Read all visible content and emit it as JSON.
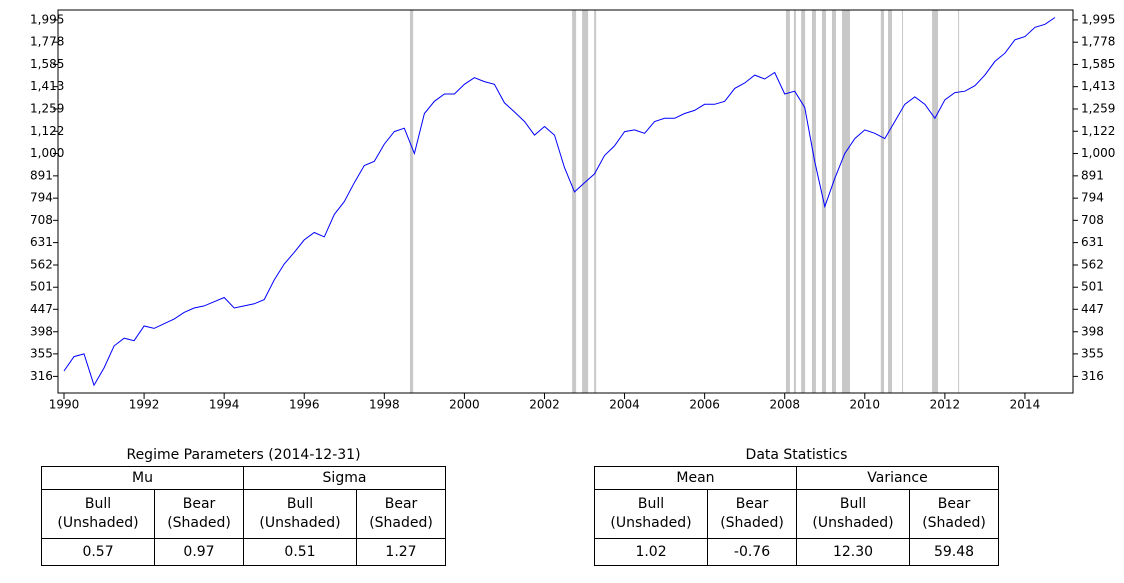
{
  "chart_data": {
    "type": "line",
    "color": "#0000ff",
    "log_y": true,
    "grid": false,
    "shade_color": "#c8c8c8",
    "x": [
      1990.0,
      1990.25,
      1990.5,
      1990.75,
      1991.0,
      1991.25,
      1991.5,
      1991.75,
      1992.0,
      1992.25,
      1992.5,
      1992.75,
      1993.0,
      1993.25,
      1993.5,
      1993.75,
      1994.0,
      1994.25,
      1994.5,
      1994.75,
      1995.0,
      1995.25,
      1995.5,
      1995.75,
      1996.0,
      1996.25,
      1996.5,
      1996.75,
      1997.0,
      1997.25,
      1997.5,
      1997.75,
      1998.0,
      1998.25,
      1998.5,
      1998.75,
      1999.0,
      1999.25,
      1999.5,
      1999.75,
      2000.0,
      2000.25,
      2000.5,
      2000.75,
      2001.0,
      2001.25,
      2001.5,
      2001.75,
      2002.0,
      2002.25,
      2002.5,
      2002.75,
      2003.0,
      2003.25,
      2003.5,
      2003.75,
      2004.0,
      2004.25,
      2004.5,
      2004.75,
      2005.0,
      2005.25,
      2005.5,
      2005.75,
      2006.0,
      2006.25,
      2006.5,
      2006.75,
      2007.0,
      2007.25,
      2007.5,
      2007.75,
      2008.0,
      2008.25,
      2008.5,
      2008.75,
      2009.0,
      2009.25,
      2009.5,
      2009.75,
      2010.0,
      2010.25,
      2010.5,
      2010.75,
      2011.0,
      2011.25,
      2011.5,
      2011.75,
      2012.0,
      2012.25,
      2012.5,
      2012.75,
      2013.0,
      2013.25,
      2013.5,
      2013.75,
      2014.0,
      2014.25,
      2014.5,
      2014.75
    ],
    "values": [
      325,
      350,
      355,
      302,
      330,
      370,
      385,
      380,
      410,
      405,
      415,
      425,
      440,
      450,
      455,
      465,
      475,
      450,
      455,
      460,
      470,
      520,
      565,
      600,
      640,
      665,
      650,
      730,
      780,
      860,
      940,
      960,
      1050,
      1120,
      1140,
      1000,
      1230,
      1310,
      1360,
      1360,
      1430,
      1480,
      1450,
      1430,
      1300,
      1240,
      1180,
      1100,
      1150,
      1100,
      930,
      820,
      860,
      900,
      990,
      1040,
      1120,
      1130,
      1110,
      1180,
      1200,
      1200,
      1230,
      1250,
      1290,
      1290,
      1310,
      1400,
      1440,
      1500,
      1470,
      1520,
      1360,
      1380,
      1270,
      960,
      760,
      880,
      1000,
      1080,
      1130,
      1110,
      1080,
      1180,
      1290,
      1340,
      1290,
      1200,
      1320,
      1370,
      1380,
      1420,
      1500,
      1610,
      1680,
      1800,
      1830,
      1920,
      1950,
      2020
    ],
    "shaded": [
      [
        1998.64,
        1998.72
      ],
      [
        2002.69,
        2002.79
      ],
      [
        2002.94,
        2003.09
      ],
      [
        2003.24,
        2003.29
      ],
      [
        2008.03,
        2008.13
      ],
      [
        2008.23,
        2008.28
      ],
      [
        2008.41,
        2008.51
      ],
      [
        2008.68,
        2008.78
      ],
      [
        2008.93,
        2009.03
      ],
      [
        2009.18,
        2009.28
      ],
      [
        2009.43,
        2009.63
      ],
      [
        2010.4,
        2010.48
      ],
      [
        2010.58,
        2010.68
      ],
      [
        2010.93,
        2010.95
      ],
      [
        2011.68,
        2011.83
      ],
      [
        2012.33,
        2012.35
      ]
    ],
    "xlim": [
      1989.85,
      2015.2
    ],
    "xticks": [
      1990,
      1992,
      1994,
      1996,
      1998,
      2000,
      2002,
      2004,
      2006,
      2008,
      2010,
      2012,
      2014
    ],
    "ylim": [
      290,
      2100
    ],
    "yticks": [
      316,
      355,
      398,
      447,
      501,
      562,
      631,
      708,
      794,
      891,
      {
        "value": 1000,
        "label": "1,000"
      },
      {
        "value": 1122,
        "label": "1,122"
      },
      {
        "value": 1259,
        "label": "1,259"
      },
      {
        "value": 1413,
        "label": "1,413"
      },
      {
        "value": 1585,
        "label": "1,585"
      },
      {
        "value": 1778,
        "label": "1,778"
      },
      {
        "value": 1995,
        "label": "1,995"
      }
    ]
  },
  "tables": [
    {
      "title": "Regime Parameters (2014-12-31)",
      "groups": [
        "Mu",
        "Sigma"
      ],
      "columns": [
        [
          "Bull",
          "(Unshaded)"
        ],
        [
          "Bear",
          "(Shaded)"
        ],
        [
          "Bull",
          "(Unshaded)"
        ],
        [
          "Bear",
          "(Shaded)"
        ]
      ],
      "values": [
        "0.57",
        "0.97",
        "0.51",
        "1.27"
      ]
    },
    {
      "title": "Data Statistics",
      "groups": [
        "Mean",
        "Variance"
      ],
      "columns": [
        [
          "Bull",
          "(Unshaded)"
        ],
        [
          "Bear",
          "(Shaded)"
        ],
        [
          "Bull",
          "(Unshaded)"
        ],
        [
          "Bear",
          "(Shaded)"
        ]
      ],
      "values": [
        "1.02",
        "-0.76",
        "12.30",
        "59.48"
      ]
    }
  ]
}
